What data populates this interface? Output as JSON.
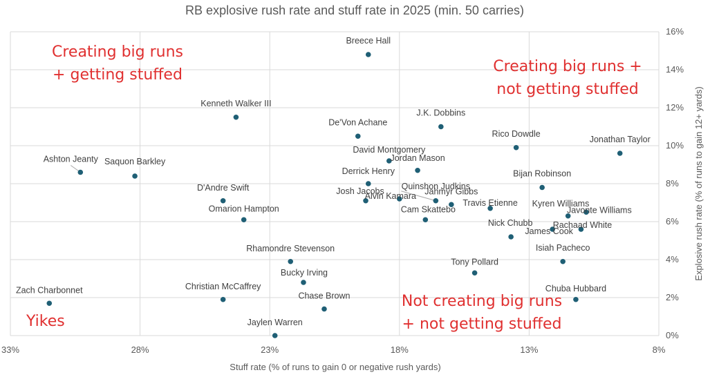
{
  "chart_data": {
    "type": "scatter",
    "title": "RB explosive rush rate and stuff rate in 2025 (min. 50 carries)",
    "xlabel": "Stuff rate (% of runs to gain 0 or negative rush yards)",
    "ylabel": "Explosive rush rate (% of runs to gain 12+ yards)",
    "xlim": [
      33,
      8
    ],
    "ylim": [
      0,
      16
    ],
    "x_reversed": true,
    "x_ticks": [
      33,
      28,
      23,
      18,
      13,
      8
    ],
    "x_tick_labels": [
      "33%",
      "28%",
      "23%",
      "18%",
      "13%",
      "8%"
    ],
    "y_ticks": [
      0,
      2,
      4,
      6,
      8,
      10,
      12,
      14,
      16
    ],
    "y_tick_labels": [
      "0%",
      "2%",
      "4%",
      "6%",
      "8%",
      "10%",
      "12%",
      "14%",
      "16%"
    ],
    "grid": true,
    "point_color": "#1f5f75",
    "annotation_color": "#e03030",
    "points": [
      {
        "name": "Breece Hall",
        "x": 19.2,
        "y": 14.8
      },
      {
        "name": "Kenneth Walker III",
        "x": 24.3,
        "y": 11.5
      },
      {
        "name": "De'Von Achane",
        "x": 19.6,
        "y": 10.5
      },
      {
        "name": "J.K. Dobbins",
        "x": 16.4,
        "y": 11.0
      },
      {
        "name": "Rico Dowdle",
        "x": 13.5,
        "y": 9.9
      },
      {
        "name": "Jonathan Taylor",
        "x": 9.5,
        "y": 9.6
      },
      {
        "name": "David Montgomery",
        "x": 18.4,
        "y": 9.2
      },
      {
        "name": "Jordan Mason",
        "x": 17.3,
        "y": 8.7
      },
      {
        "name": "Ashton Jeanty",
        "x": 30.3,
        "y": 8.6
      },
      {
        "name": "Saquon Barkley",
        "x": 28.2,
        "y": 8.4
      },
      {
        "name": "Derrick Henry",
        "x": 19.2,
        "y": 8.0
      },
      {
        "name": "Bijan Robinson",
        "x": 12.5,
        "y": 7.8
      },
      {
        "name": "D'Andre Swift",
        "x": 24.8,
        "y": 7.1
      },
      {
        "name": "Josh Jacobs",
        "x": 19.3,
        "y": 7.1
      },
      {
        "name": "Alvin Kamara",
        "x": 18.0,
        "y": 7.2
      },
      {
        "name": "Quinshon Judkins",
        "x": 16.6,
        "y": 7.1
      },
      {
        "name": "Jahmyr Gibbs",
        "x": 16.0,
        "y": 6.9
      },
      {
        "name": "Travis Etienne",
        "x": 14.5,
        "y": 6.7
      },
      {
        "name": "Kyren Williams",
        "x": 11.5,
        "y": 6.3
      },
      {
        "name": "Javonte Williams",
        "x": 10.8,
        "y": 6.5
      },
      {
        "name": "Omarion Hampton",
        "x": 24.0,
        "y": 6.1
      },
      {
        "name": "Cam Skattebo",
        "x": 17.0,
        "y": 6.1
      },
      {
        "name": "Rachaad White",
        "x": 11.0,
        "y": 5.6
      },
      {
        "name": "James Cook",
        "x": 12.1,
        "y": 5.6
      },
      {
        "name": "Nick Chubb",
        "x": 13.7,
        "y": 5.2
      },
      {
        "name": "Rhamondre Stevenson",
        "x": 22.2,
        "y": 3.9
      },
      {
        "name": "Isiah Pacheco",
        "x": 11.7,
        "y": 3.9
      },
      {
        "name": "Tony Pollard",
        "x": 15.1,
        "y": 3.3
      },
      {
        "name": "Bucky Irving",
        "x": 21.7,
        "y": 2.8
      },
      {
        "name": "Christian McCaffrey",
        "x": 24.8,
        "y": 1.9
      },
      {
        "name": "Chuba Hubbard",
        "x": 11.2,
        "y": 1.9
      },
      {
        "name": "Zach Charbonnet",
        "x": 31.5,
        "y": 1.7
      },
      {
        "name": "Chase Brown",
        "x": 20.9,
        "y": 1.4
      },
      {
        "name": "Jaylen Warren",
        "x": 22.8,
        "y": 0.0
      }
    ],
    "annotations": [
      {
        "lines": [
          "Creating big runs",
          "+ getting stuffed"
        ]
      },
      {
        "lines": [
          "Creating big runs +",
          "not getting stuffed"
        ]
      },
      {
        "lines": [
          "Not creating big runs",
          "+ not getting stuffed"
        ]
      },
      {
        "lines": [
          "Yikes"
        ]
      }
    ]
  }
}
